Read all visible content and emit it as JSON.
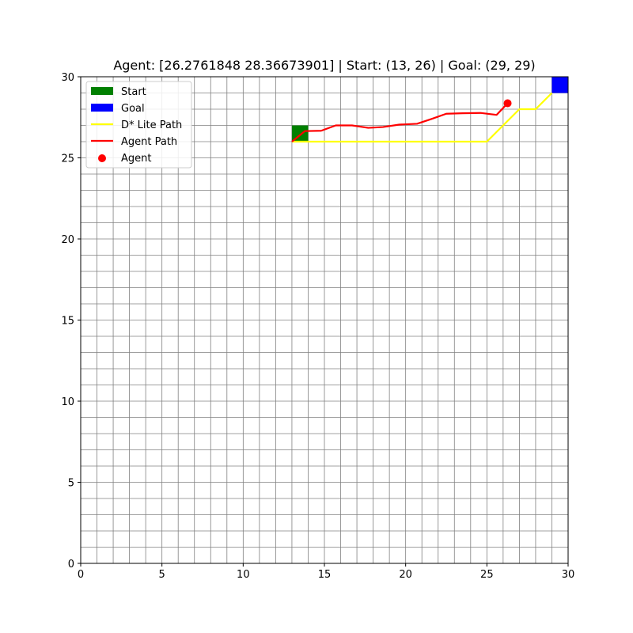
{
  "chart_data": {
    "type": "line",
    "title": "Agent: [26.2761848  28.36673901] | Start: (13, 26) | Goal: (29, 29)",
    "xlim": [
      0,
      30
    ],
    "ylim": [
      0,
      30
    ],
    "xticks": [
      0,
      5,
      10,
      15,
      20,
      25,
      30
    ],
    "yticks": [
      0,
      5,
      10,
      15,
      20,
      25,
      30
    ],
    "grid": true,
    "grid_step": 1,
    "grid_color": "#808080",
    "legend_position": "upper-left",
    "legend": [
      {
        "label": "Start",
        "kind": "patch",
        "color": "#008000"
      },
      {
        "label": "Goal",
        "kind": "patch",
        "color": "#0000ff"
      },
      {
        "label": "D* Lite Path",
        "kind": "line",
        "color": "#ffff00"
      },
      {
        "label": "Agent Path",
        "kind": "line",
        "color": "#ff0000"
      },
      {
        "label": "Agent",
        "kind": "marker",
        "color": "#ff0000"
      }
    ],
    "start_cell": {
      "x": 13,
      "y": 26,
      "color": "#008000"
    },
    "goal_cell": {
      "x": 29,
      "y": 29,
      "color": "#0000ff"
    },
    "series": [
      {
        "name": "D* Lite Path",
        "color": "#ffff00",
        "points": [
          [
            13,
            26
          ],
          [
            14,
            26
          ],
          [
            15,
            26
          ],
          [
            16,
            26
          ],
          [
            17,
            26
          ],
          [
            18,
            26
          ],
          [
            19,
            26
          ],
          [
            20,
            26
          ],
          [
            21,
            26
          ],
          [
            22,
            26
          ],
          [
            23,
            26
          ],
          [
            24,
            26
          ],
          [
            25,
            26
          ],
          [
            26,
            27
          ],
          [
            27,
            28
          ],
          [
            28,
            28
          ],
          [
            29,
            29
          ]
        ]
      },
      {
        "name": "Agent Path",
        "color": "#ff0000",
        "points": [
          [
            13.0,
            26.0
          ],
          [
            13.8,
            26.65
          ],
          [
            14.8,
            26.67
          ],
          [
            15.7,
            27.0
          ],
          [
            16.7,
            27.0
          ],
          [
            17.7,
            26.85
          ],
          [
            18.6,
            26.9
          ],
          [
            19.6,
            27.05
          ],
          [
            20.7,
            27.1
          ],
          [
            21.6,
            27.4
          ],
          [
            22.5,
            27.72
          ],
          [
            23.5,
            27.75
          ],
          [
            24.6,
            27.77
          ],
          [
            25.6,
            27.65
          ],
          [
            26.28,
            28.37
          ]
        ]
      }
    ],
    "agent_point": {
      "x": 26.2761848,
      "y": 28.36673901,
      "color": "#ff0000"
    }
  }
}
